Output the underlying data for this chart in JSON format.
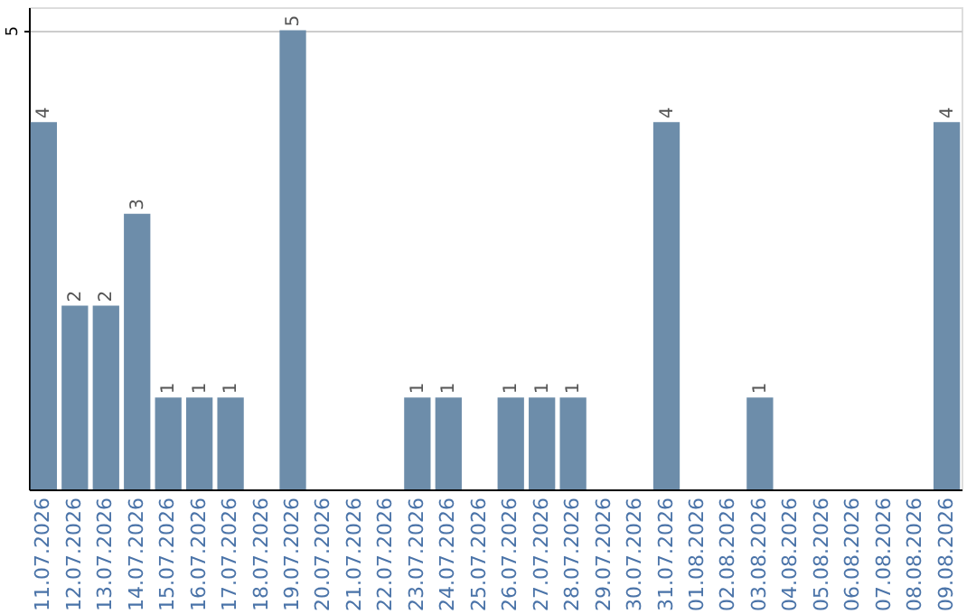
{
  "chart_data": {
    "type": "bar",
    "categories": [
      "11.07.2026",
      "12.07.2026",
      "13.07.2026",
      "14.07.2026",
      "15.07.2026",
      "16.07.2026",
      "17.07.2026",
      "18.07.2026",
      "19.07.2026",
      "20.07.2026",
      "21.07.2026",
      "22.07.2026",
      "23.07.2026",
      "24.07.2026",
      "25.07.2026",
      "26.07.2026",
      "27.07.2026",
      "28.07.2026",
      "29.07.2026",
      "30.07.2026",
      "31.07.2026",
      "01.08.2026",
      "02.08.2026",
      "03.08.2026",
      "04.08.2026",
      "05.08.2026",
      "06.08.2026",
      "07.08.2026",
      "08.08.2026",
      "09.08.2026"
    ],
    "values": [
      4,
      2,
      2,
      3,
      1,
      1,
      1,
      0,
      5,
      0,
      0,
      0,
      1,
      1,
      0,
      1,
      1,
      1,
      0,
      0,
      4,
      0,
      0,
      1,
      0,
      0,
      0,
      0,
      0,
      4
    ],
    "value_labels": [
      "4",
      "2",
      "2",
      "3",
      "1",
      "1",
      "1",
      null,
      "5",
      null,
      null,
      null,
      "1",
      "1",
      null,
      "1",
      "1",
      "1",
      null,
      null,
      "4",
      null,
      null,
      "1",
      null,
      null,
      null,
      null,
      null,
      "4"
    ],
    "color": "#6d8daa",
    "ylim": [
      0,
      5.25
    ],
    "yticks": [
      5
    ],
    "grid": "y"
  }
}
